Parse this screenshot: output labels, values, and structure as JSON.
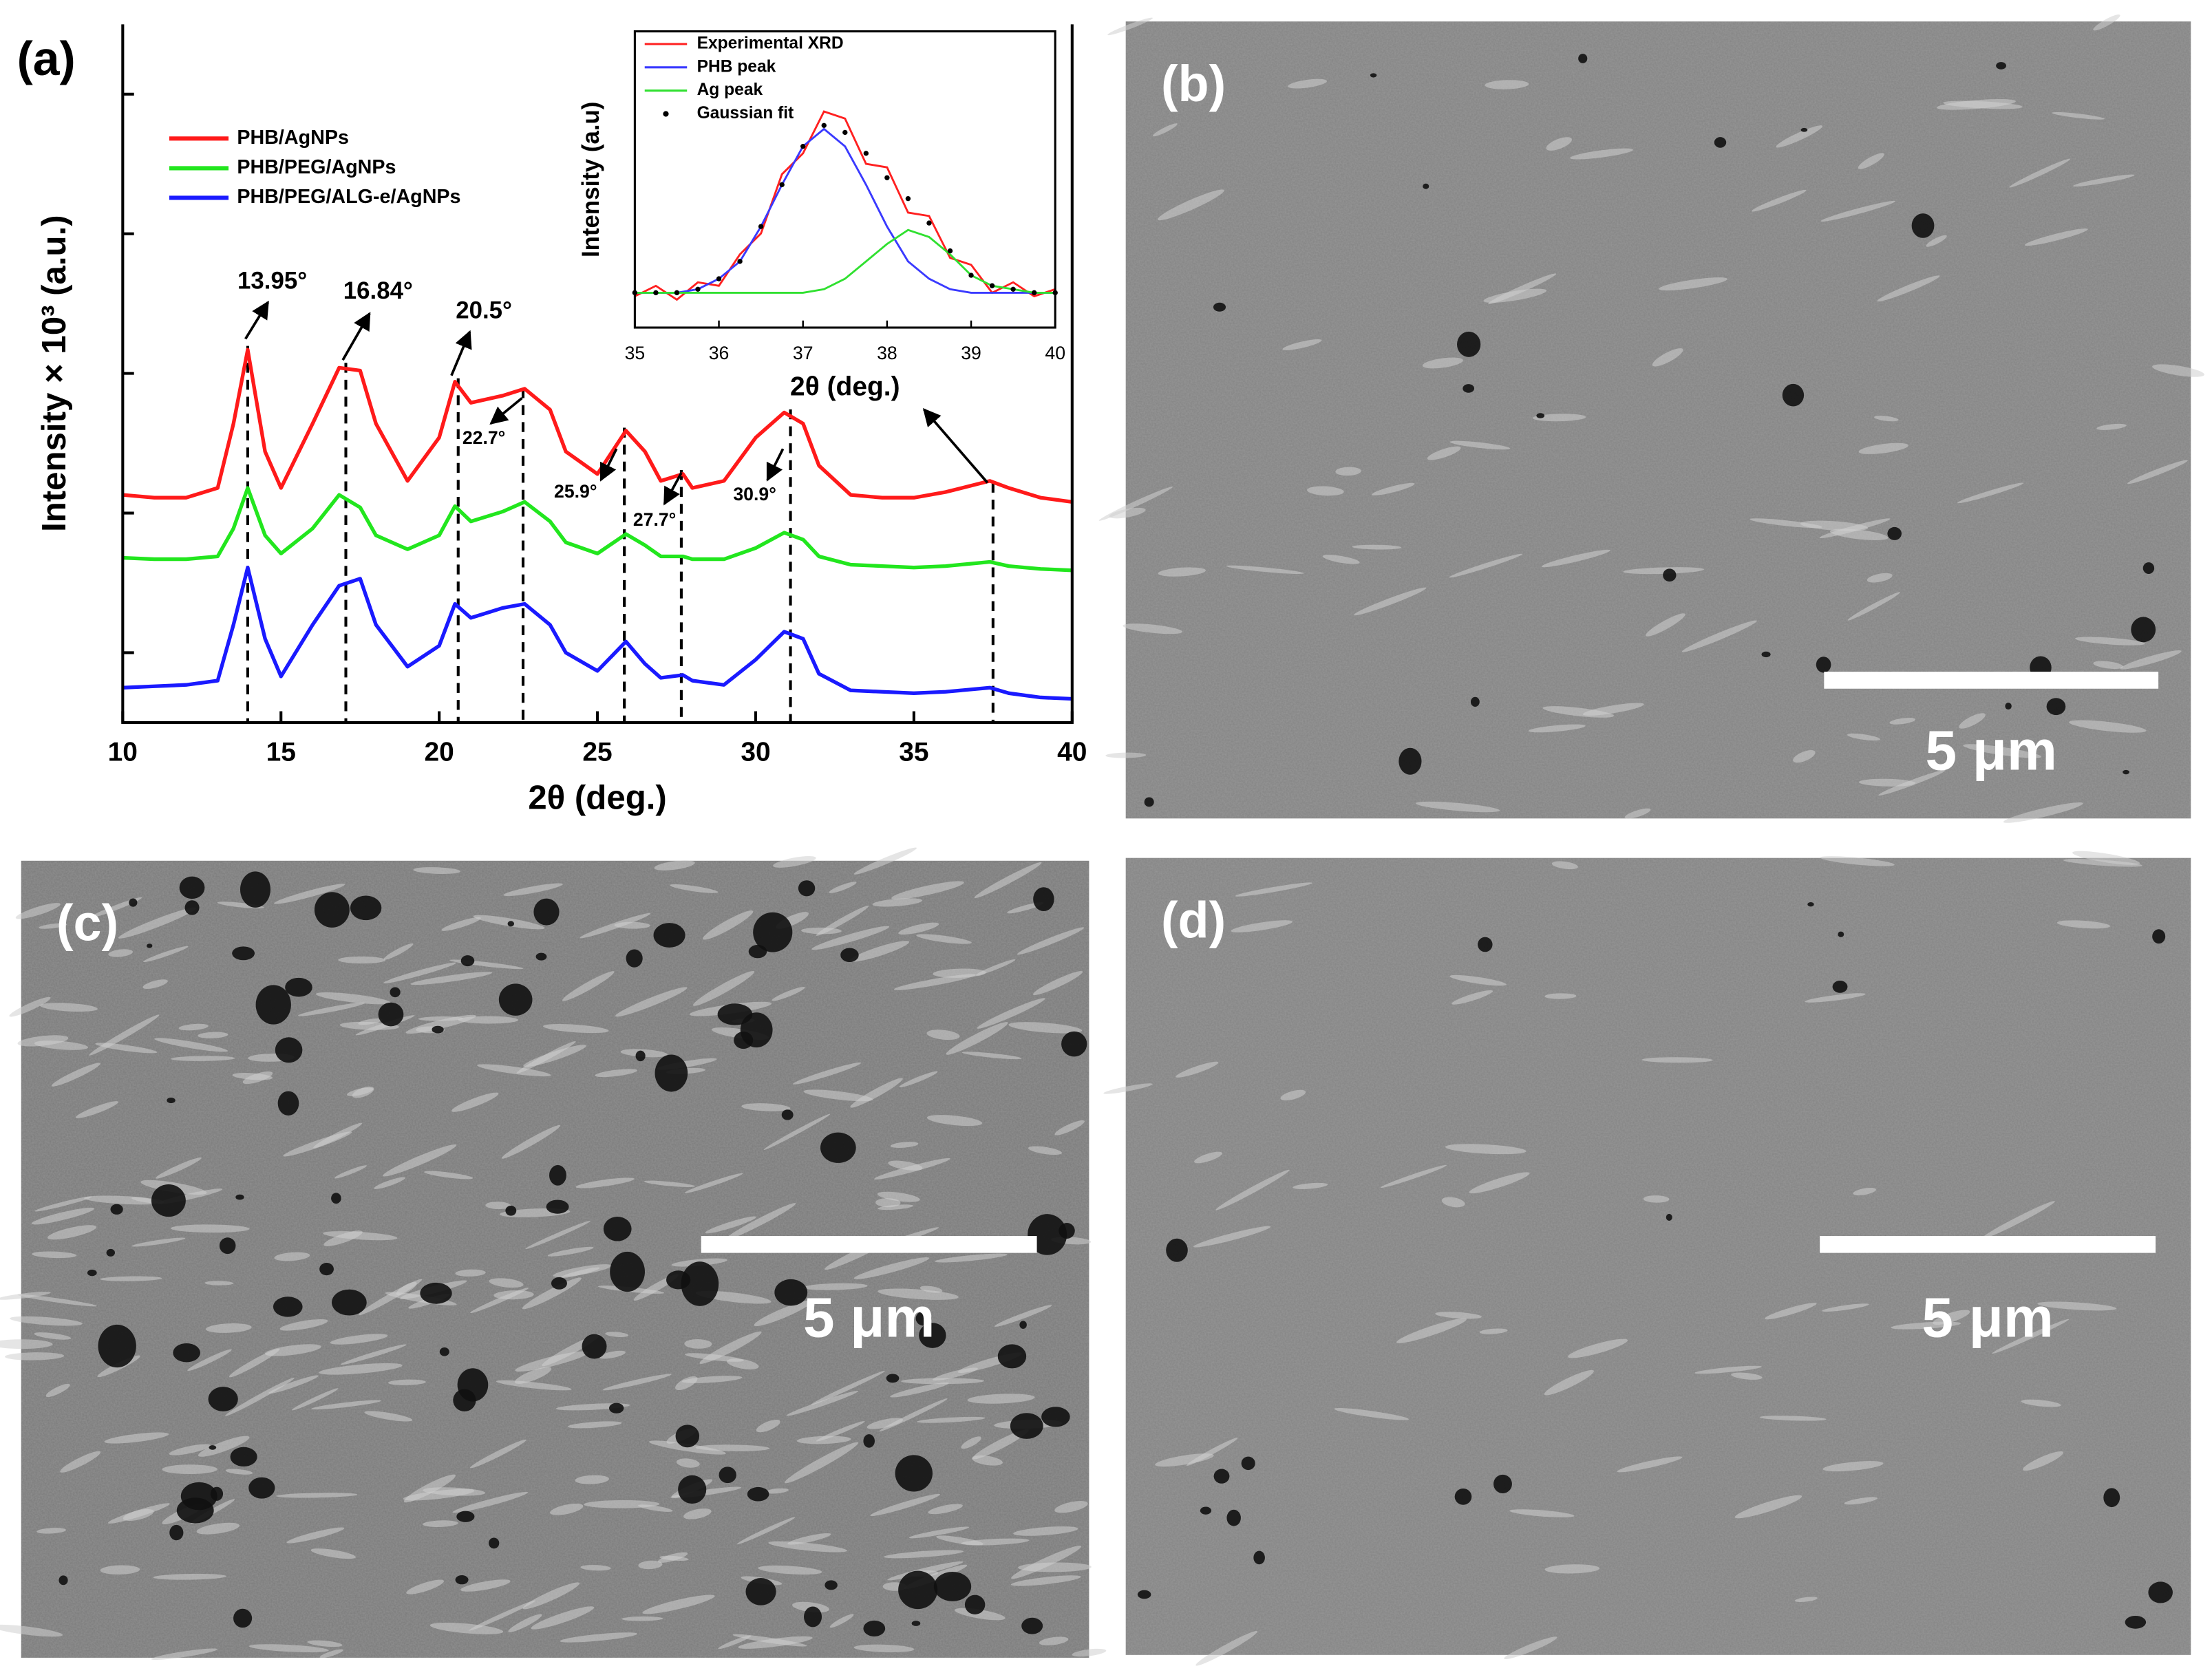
{
  "chart_data": [
    {
      "type": "line",
      "label": "(a)",
      "xlabel": "2θ (deg.)",
      "ylabel": "Intensity × 10³ (a.u.)",
      "x": [
        10,
        11,
        12,
        13,
        13.5,
        13.95,
        14.5,
        15,
        16,
        16.84,
        17.5,
        18,
        19,
        20,
        20.5,
        21,
        22,
        22.7,
        23.5,
        24,
        25,
        25.9,
        26.5,
        27,
        27.7,
        28,
        29,
        30,
        30.9,
        31.5,
        32,
        33,
        34,
        35,
        36,
        37.4,
        38,
        39,
        40
      ],
      "series": [
        {
          "name": "PHB/AgNPs",
          "color": "#ff1a1a",
          "values": [
            1.63,
            1.61,
            1.61,
            1.68,
            2.14,
            2.67,
            1.94,
            1.68,
            2.14,
            2.54,
            2.52,
            2.14,
            1.73,
            2.04,
            2.44,
            2.29,
            2.34,
            2.39,
            2.24,
            1.94,
            1.78,
            2.09,
            1.94,
            1.73,
            1.78,
            1.68,
            1.73,
            2.04,
            2.22,
            2.14,
            1.84,
            1.63,
            1.61,
            1.61,
            1.65,
            1.73,
            1.68,
            1.61,
            1.58
          ]
        },
        {
          "name": "PHB/PEG/AgNPs",
          "color": "#22e61e",
          "values": [
            1.18,
            1.17,
            1.17,
            1.19,
            1.39,
            1.68,
            1.34,
            1.21,
            1.39,
            1.63,
            1.54,
            1.34,
            1.24,
            1.34,
            1.55,
            1.44,
            1.51,
            1.58,
            1.44,
            1.29,
            1.21,
            1.35,
            1.27,
            1.19,
            1.19,
            1.17,
            1.17,
            1.25,
            1.36,
            1.31,
            1.19,
            1.13,
            1.12,
            1.11,
            1.12,
            1.15,
            1.12,
            1.1,
            1.09
          ]
        },
        {
          "name": "PHB/PEG/ALG-e/AgNPs",
          "color": "#1a1aff",
          "values": [
            0.25,
            0.26,
            0.27,
            0.3,
            0.7,
            1.11,
            0.6,
            0.33,
            0.7,
            0.98,
            1.03,
            0.7,
            0.4,
            0.55,
            0.85,
            0.75,
            0.82,
            0.85,
            0.7,
            0.5,
            0.37,
            0.58,
            0.42,
            0.32,
            0.34,
            0.3,
            0.27,
            0.45,
            0.65,
            0.6,
            0.35,
            0.23,
            0.22,
            0.21,
            0.22,
            0.25,
            0.21,
            0.18,
            0.17
          ]
        }
      ],
      "xlim": [
        10,
        40
      ],
      "xticks": [
        10,
        15,
        20,
        25,
        30,
        35,
        40
      ],
      "ylim": [
        0,
        5
      ],
      "yticks": [
        0.5,
        1.5,
        2.5,
        3.5,
        4.5
      ],
      "peak_lines": [
        13.95,
        17.05,
        20.6,
        22.65,
        25.85,
        27.65,
        31.1,
        37.5
      ],
      "annotations": [
        "13.95°",
        "16.84°",
        "20.5°",
        "22.7°",
        "25.9°",
        "27.7°",
        "30.9°"
      ]
    },
    {
      "type": "line",
      "xlabel": "2θ (deg.)",
      "ylabel": "Intensity (a.u)",
      "x": [
        35,
        35.25,
        35.5,
        35.75,
        36,
        36.25,
        36.5,
        36.75,
        37,
        37.25,
        37.5,
        37.75,
        38,
        38.25,
        38.5,
        38.75,
        39,
        39.25,
        39.5,
        39.75,
        40
      ],
      "series": [
        {
          "name": "Experimental XRD",
          "color": "#ff2020",
          "style": "line",
          "values": [
            0.09,
            0.12,
            0.08,
            0.13,
            0.12,
            0.21,
            0.27,
            0.44,
            0.5,
            0.62,
            0.6,
            0.47,
            0.46,
            0.33,
            0.32,
            0.2,
            0.18,
            0.1,
            0.13,
            0.09,
            0.11
          ]
        },
        {
          "name": "PHB peak",
          "color": "#3a3aff",
          "style": "line",
          "values": [
            0.1,
            0.1,
            0.1,
            0.11,
            0.14,
            0.19,
            0.29,
            0.41,
            0.52,
            0.57,
            0.52,
            0.41,
            0.29,
            0.19,
            0.14,
            0.11,
            0.1,
            0.1,
            0.1,
            0.1,
            0.1
          ]
        },
        {
          "name": "Ag peak",
          "color": "#30e030",
          "style": "line",
          "values": [
            0.1,
            0.1,
            0.1,
            0.1,
            0.1,
            0.1,
            0.1,
            0.1,
            0.1,
            0.11,
            0.14,
            0.19,
            0.24,
            0.28,
            0.26,
            0.21,
            0.15,
            0.12,
            0.11,
            0.1,
            0.1
          ]
        },
        {
          "name": "Gaussian fit",
          "color": "#000000",
          "style": "dots",
          "values": [
            0.1,
            0.1,
            0.1,
            0.11,
            0.14,
            0.19,
            0.29,
            0.41,
            0.52,
            0.58,
            0.56,
            0.5,
            0.43,
            0.37,
            0.3,
            0.22,
            0.15,
            0.12,
            0.11,
            0.1,
            0.1
          ]
        }
      ],
      "xlim": [
        35,
        40
      ],
      "xticks": [
        35,
        36,
        37,
        38,
        39,
        40
      ],
      "ylim": [
        0,
        0.85
      ]
    }
  ],
  "panels": [
    {
      "label": "(b)",
      "scale_bar": "5 μm"
    },
    {
      "label": "(c)",
      "scale_bar": "5 μm"
    },
    {
      "label": "(d)",
      "scale_bar": "5 μm"
    }
  ]
}
